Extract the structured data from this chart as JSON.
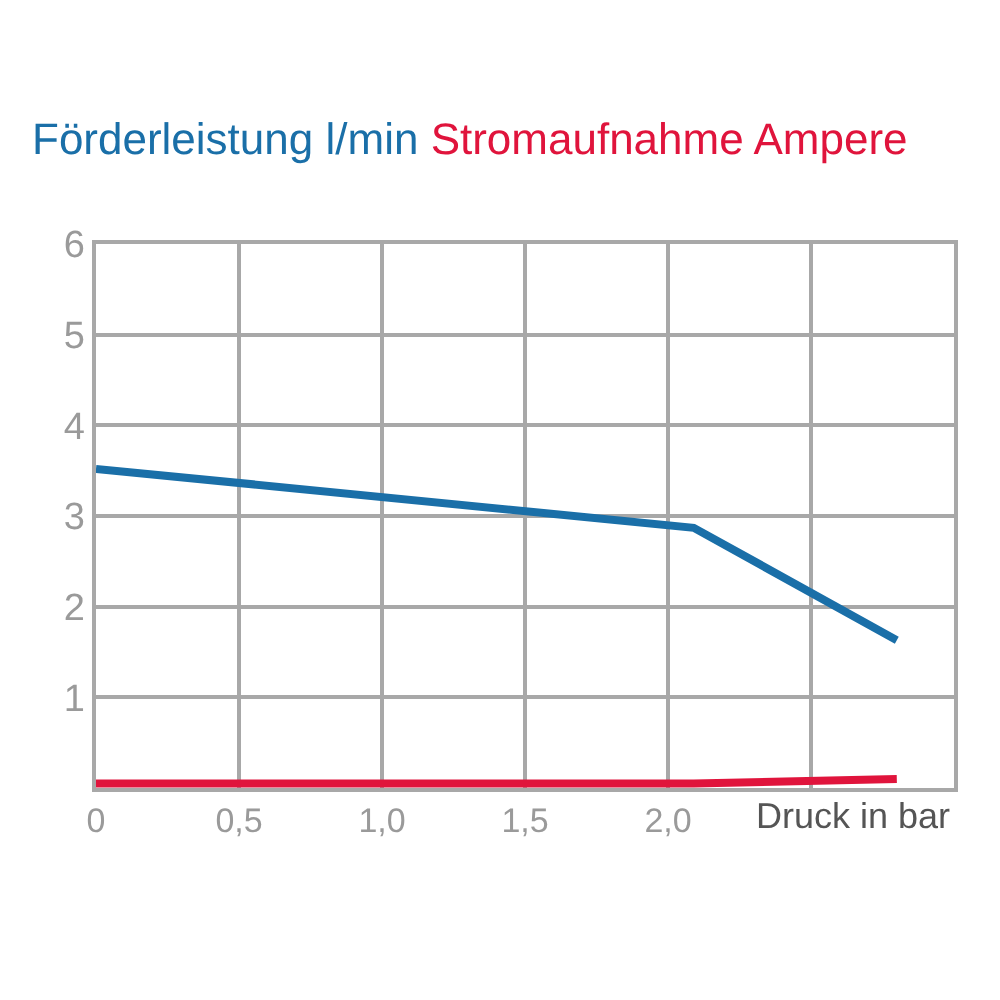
{
  "chart_data": {
    "type": "line",
    "xlabel": "Druck in bar",
    "x": [
      0,
      2.09,
      2.8
    ],
    "series": [
      {
        "name": "Förderleistung l/min",
        "color": "#1a6fa8",
        "values": [
          3.52,
          2.87,
          1.63
        ]
      },
      {
        "name": "Stromaufnahme Ampere",
        "color": "#e0143c",
        "values": [
          0.05,
          0.05,
          0.1
        ]
      }
    ],
    "xlim": [
      0,
      3
    ],
    "xticks": [
      {
        "value": 0,
        "label": "0"
      },
      {
        "value": 0.5,
        "label": "0,5"
      },
      {
        "value": 1,
        "label": "1,0"
      },
      {
        "value": 1.5,
        "label": "1,5"
      },
      {
        "value": 2,
        "label": "2,0"
      },
      {
        "value": 2.5,
        "label": null
      },
      {
        "value": 3,
        "label": null
      }
    ],
    "ylim": [
      0,
      6
    ],
    "yticks": [
      {
        "value": 0,
        "label": null
      },
      1,
      2,
      3,
      4,
      5,
      6
    ],
    "grid": true,
    "marker": "none",
    "line_style": "solid"
  }
}
